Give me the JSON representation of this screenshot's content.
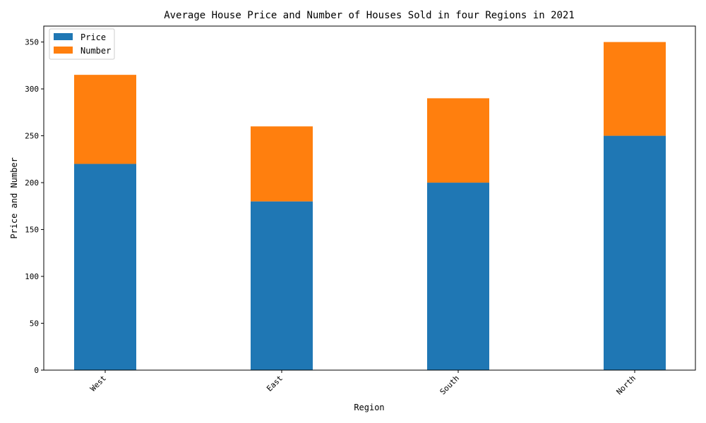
{
  "chart_data": {
    "type": "bar",
    "stacked": true,
    "title": "Average House Price and Number of Houses Sold in four Regions in 2021",
    "xlabel": "Region",
    "ylabel": "Price and Number",
    "categories": [
      "West",
      "East",
      "South",
      "North"
    ],
    "series": [
      {
        "name": "Price",
        "values": [
          220,
          180,
          200,
          250
        ],
        "color": "#1f77b4"
      },
      {
        "name": "Number",
        "values": [
          95,
          80,
          90,
          100
        ],
        "color": "#ff7f0e"
      }
    ],
    "ylim": [
      0,
      367
    ],
    "yticks": [
      0,
      50,
      100,
      150,
      200,
      250,
      300,
      350
    ],
    "grid": false,
    "legend_position": "top-left"
  }
}
